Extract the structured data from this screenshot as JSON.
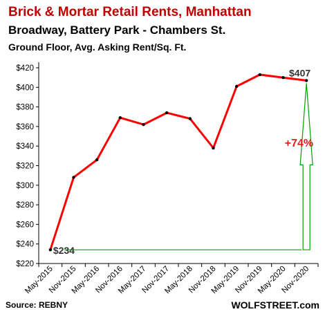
{
  "chart_data": {
    "type": "line",
    "title": "Brick & Mortar Retail Rents, Manhattan",
    "subtitle": "Broadway, Battery Park - Chambers St.",
    "subtitle2": "Ground Floor, Avg. Asking Rent/Sq. Ft.",
    "x": [
      "May-2015",
      "Nov-2015",
      "May-2016",
      "Nov-2016",
      "May-2017",
      "Nov-2017",
      "May-2018",
      "Nov-2018",
      "May-2019",
      "Nov-2019",
      "May-2020",
      "Nov-2020"
    ],
    "series": [
      {
        "values": [
          234,
          308,
          326,
          369,
          362,
          374,
          368,
          338,
          401,
          413,
          410,
          407
        ],
        "color": "#ff0000"
      }
    ],
    "ylim": [
      220,
      420
    ],
    "yticks": [
      "$220",
      "$240",
      "$260",
      "$280",
      "$300",
      "$320",
      "$340",
      "$360",
      "$380",
      "$400",
      "$420"
    ],
    "grid": false,
    "annotations": {
      "start_label": "$234",
      "end_label": "$407",
      "change_label": "+74%",
      "line_color": "#00a000",
      "change_color": "#e02020"
    },
    "source": "Source: REBNY",
    "brand": "WOLFSTREET.com"
  }
}
